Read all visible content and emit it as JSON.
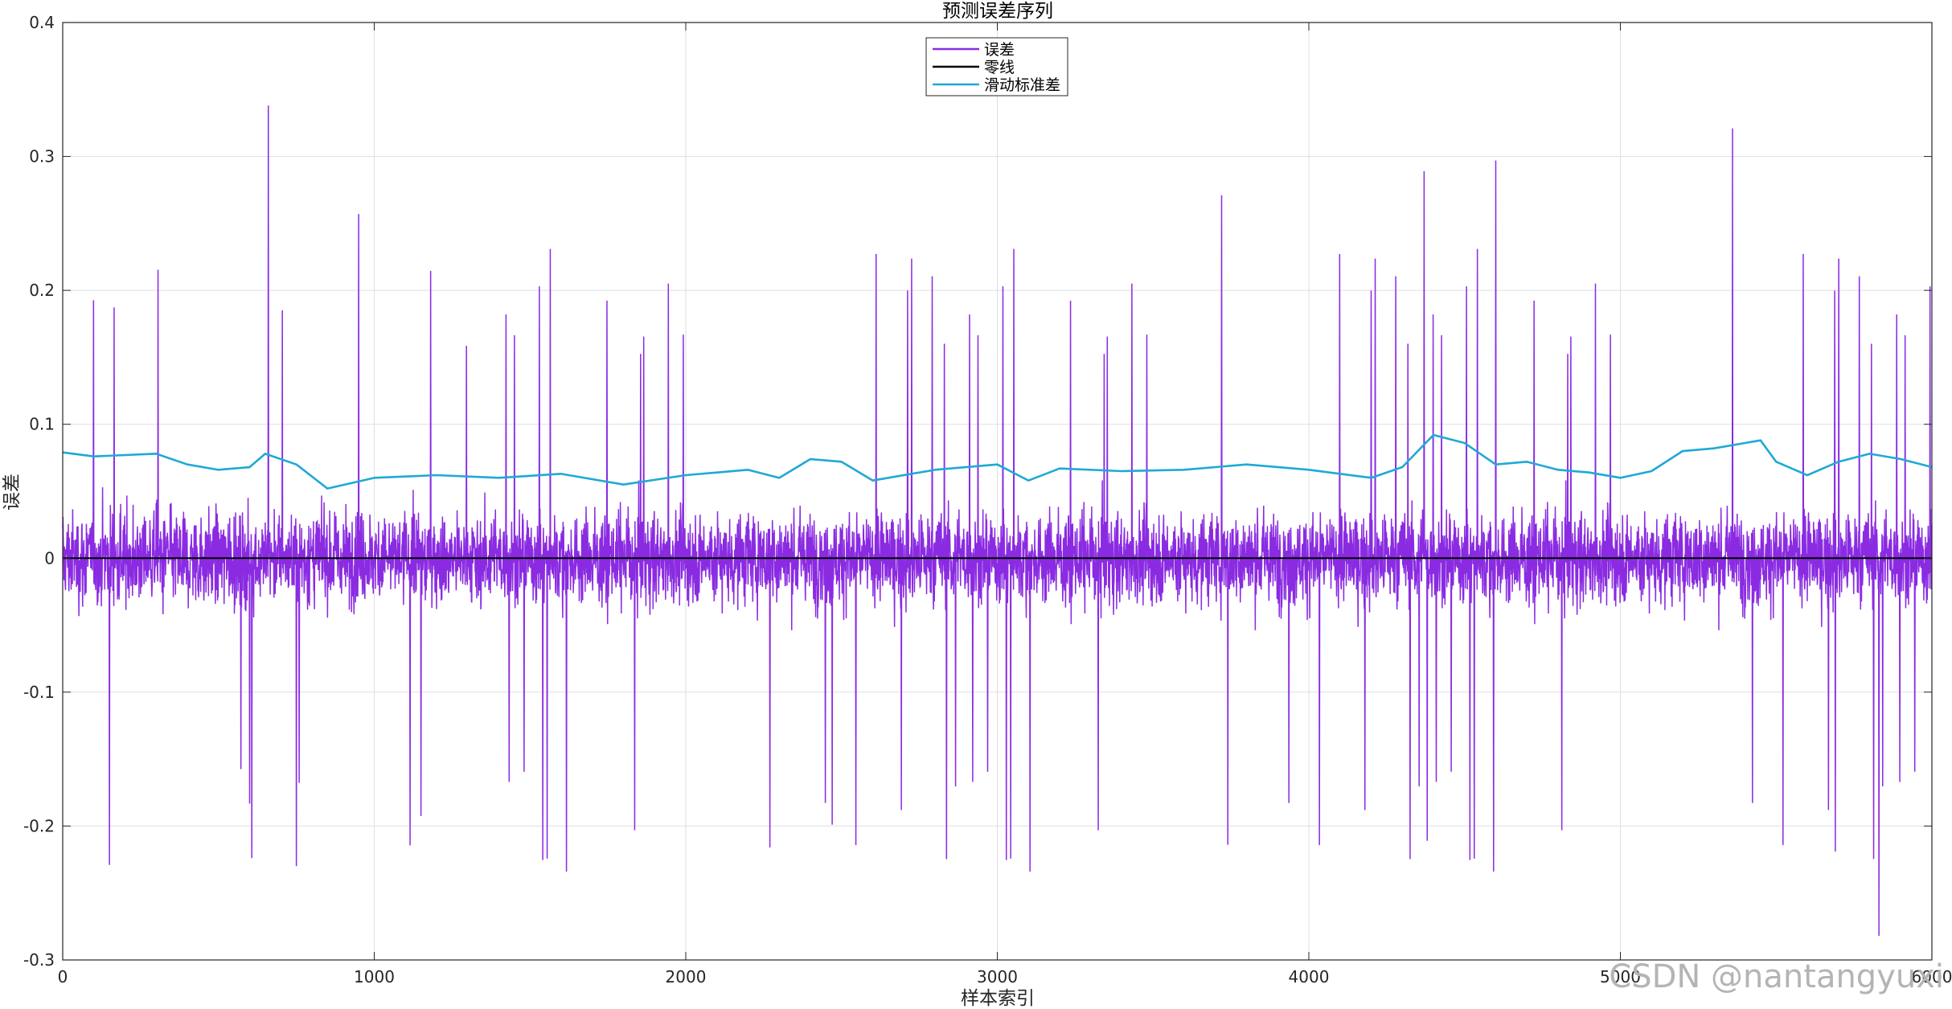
{
  "chart_data": {
    "type": "line",
    "title": "预测误差序列",
    "xlabel": "样本索引",
    "ylabel": "误差",
    "xlim": [
      0,
      6000
    ],
    "ylim": [
      -0.3,
      0.4
    ],
    "xticks": [
      0,
      1000,
      2000,
      3000,
      4000,
      5000,
      6000
    ],
    "xtick_labels": [
      "0",
      "1000",
      "2000",
      "3000",
      "4000",
      "5000",
      "6000"
    ],
    "yticks": [
      -0.3,
      -0.2,
      -0.1,
      0,
      0.1,
      0.2,
      0.3,
      0.4
    ],
    "ytick_labels": [
      "-0.3",
      "-0.2",
      "-0.1",
      "0",
      "0.1",
      "0.2",
      "0.3",
      "0.4"
    ],
    "grid": true,
    "legend_position": "top-center",
    "series": [
      {
        "name": "误差",
        "color": "#8a2be2",
        "note_values": "noisy error signal, approx. 6000 samples; notable extremes listed below",
        "n_samples": 6000,
        "extremes": [
          {
            "x": 660,
            "y": 0.338
          },
          {
            "x": 150,
            "y": -0.229
          },
          {
            "x": 950,
            "y": 0.257
          },
          {
            "x": 2270,
            "y": -0.216
          },
          {
            "x": 2470,
            "y": -0.199
          },
          {
            "x": 3740,
            "y": -0.214
          },
          {
            "x": 3720,
            "y": 0.271
          },
          {
            "x": 4370,
            "y": 0.289
          },
          {
            "x": 4380,
            "y": -0.211
          },
          {
            "x": 4600,
            "y": 0.297
          },
          {
            "x": 5360,
            "y": 0.321
          },
          {
            "x": 5690,
            "y": -0.219
          },
          {
            "x": 5830,
            "y": -0.282
          }
        ]
      },
      {
        "name": "零线",
        "color": "#000000",
        "x": [
          0,
          6000
        ],
        "y": [
          0,
          0
        ]
      },
      {
        "name": "滑动标准差",
        "color": "#1fa9d6",
        "x": [
          0,
          100,
          300,
          400,
          500,
          600,
          650,
          750,
          850,
          1000,
          1200,
          1400,
          1600,
          1800,
          2000,
          2200,
          2300,
          2400,
          2500,
          2600,
          2800,
          3000,
          3100,
          3200,
          3400,
          3600,
          3800,
          4000,
          4200,
          4300,
          4400,
          4500,
          4600,
          4700,
          4800,
          4900,
          5000,
          5100,
          5200,
          5300,
          5400,
          5450,
          5500,
          5600,
          5700,
          5800,
          5900,
          6000
        ],
        "y": [
          0.079,
          0.076,
          0.078,
          0.07,
          0.066,
          0.068,
          0.078,
          0.07,
          0.052,
          0.06,
          0.062,
          0.06,
          0.063,
          0.055,
          0.062,
          0.066,
          0.06,
          0.074,
          0.072,
          0.058,
          0.066,
          0.07,
          0.058,
          0.067,
          0.065,
          0.066,
          0.07,
          0.066,
          0.06,
          0.068,
          0.092,
          0.086,
          0.07,
          0.072,
          0.066,
          0.064,
          0.06,
          0.065,
          0.08,
          0.082,
          0.086,
          0.088,
          0.072,
          0.062,
          0.072,
          0.078,
          0.074,
          0.068
        ]
      }
    ],
    "watermark": "CSDN @nantangyuxi"
  }
}
